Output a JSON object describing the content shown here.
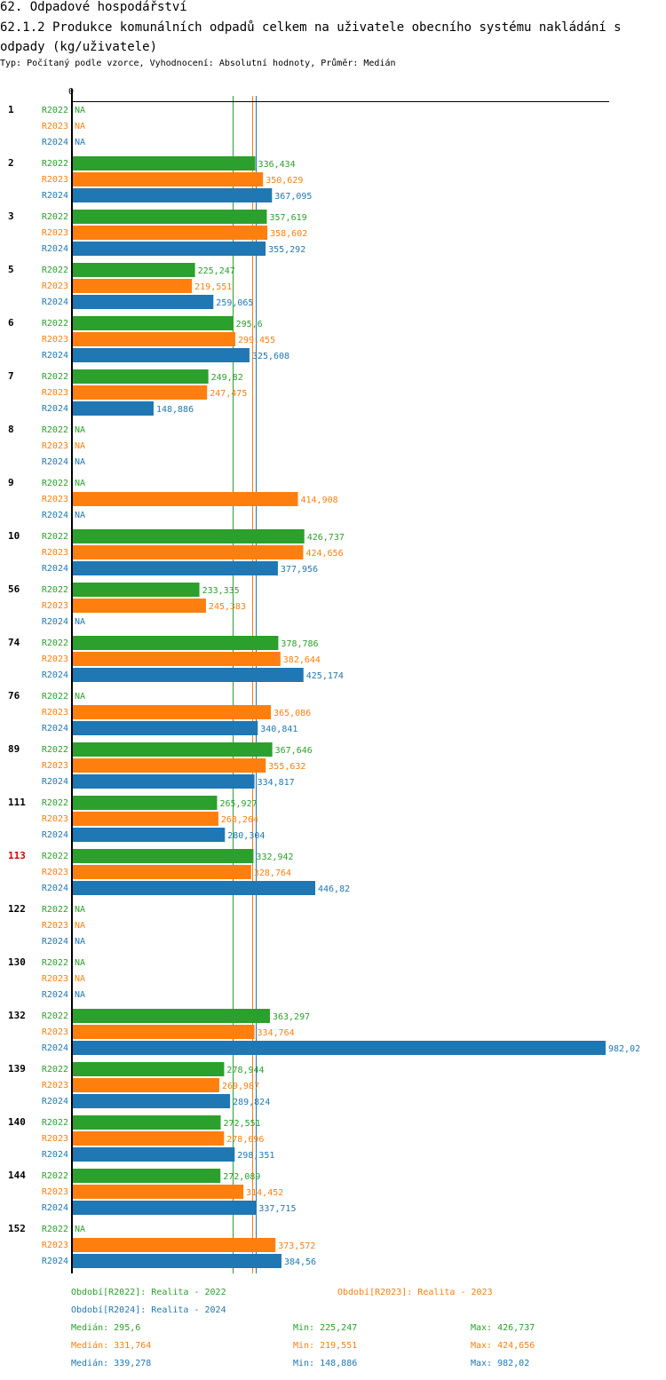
{
  "header": {
    "section": "62. Odpadové hospodářství",
    "title": "62.1.2 Produkce komunálních odpadů celkem na uživatele obecního systému nakládání s odpady (kg/uživatele)",
    "subtitle": "Typ: Počítaný podle vzorce, Vyhodnocení: Absolutní hodnoty, Průměr: Medián"
  },
  "chart_data": {
    "type": "bar",
    "orientation": "horizontal",
    "title": "62.1.2 Produkce komunálních odpadů celkem na uživatele obecního systému nakládání s odpady (kg/uživatele)",
    "xlabel": "",
    "ylabel": "",
    "x_tick_labels": [
      "0"
    ],
    "xlim": [
      0,
      982.02
    ],
    "grid": false,
    "missing_label": "NA",
    "highlight_category": "113",
    "categories": [
      "1",
      "2",
      "3",
      "5",
      "6",
      "7",
      "8",
      "9",
      "10",
      "56",
      "74",
      "76",
      "89",
      "111",
      "113",
      "122",
      "130",
      "132",
      "139",
      "140",
      "144",
      "152"
    ],
    "series": [
      {
        "name": "R2022",
        "color": "#2ca02c",
        "values": [
          null,
          336.434,
          357.619,
          225.247,
          295.6,
          249.82,
          null,
          null,
          426.737,
          233.335,
          378.786,
          null,
          367.646,
          265.927,
          332.942,
          null,
          null,
          363.297,
          278.944,
          272.551,
          272.089,
          null
        ],
        "labels": [
          "NA",
          "336,434",
          "357,619",
          "225,247",
          "295,6",
          "249,82",
          "NA",
          "NA",
          "426,737",
          "233,335",
          "378,786",
          "NA",
          "367,646",
          "265,927",
          "332,942",
          "NA",
          "NA",
          "363,297",
          "278,944",
          "272,551",
          "272,089",
          "NA"
        ]
      },
      {
        "name": "R2023",
        "color": "#ff7f0e",
        "values": [
          null,
          350.629,
          358.602,
          219.551,
          299.455,
          247.475,
          null,
          414.908,
          424.656,
          245.383,
          382.644,
          365.086,
          355.632,
          268.264,
          328.764,
          null,
          null,
          334.764,
          269.987,
          278.696,
          314.452,
          373.572
        ],
        "labels": [
          "NA",
          "350,629",
          "358,602",
          "219,551",
          "299,455",
          "247,475",
          "NA",
          "414,908",
          "424,656",
          "245,383",
          "382,644",
          "365,086",
          "355,632",
          "268,264",
          "328,764",
          "NA",
          "NA",
          "334,764",
          "269,987",
          "278,696",
          "314,452",
          "373,572"
        ]
      },
      {
        "name": "R2024",
        "color": "#1f77b4",
        "values": [
          null,
          367.095,
          355.292,
          259.065,
          325.608,
          148.886,
          null,
          null,
          377.956,
          null,
          425.174,
          340.841,
          334.817,
          280.304,
          446.82,
          null,
          null,
          982.02,
          289.824,
          298.351,
          337.715,
          384.56
        ],
        "labels": [
          "NA",
          "367,095",
          "355,292",
          "259,065",
          "325,608",
          "148,886",
          "NA",
          "NA",
          "377,956",
          "NA",
          "425,174",
          "340,841",
          "334,817",
          "280,304",
          "446,82",
          "NA",
          "NA",
          "982,02",
          "289,824",
          "298,351",
          "337,715",
          "384,56"
        ]
      }
    ],
    "medians": [
      295.6,
      331.764,
      339.278
    ],
    "legend": {
      "position": "bottom",
      "periods": [
        "Období[R2022]: Realita - 2022",
        "Období[R2023]: Realita - 2023",
        "Období[R2024]: Realita - 2024"
      ],
      "stats": [
        {
          "median": "Medián: 295,6",
          "min": "Min: 225,247",
          "max": "Max: 426,737"
        },
        {
          "median": "Medián: 331,764",
          "min": "Min: 219,551",
          "max": "Max: 424,656"
        },
        {
          "median": "Medián: 339,278",
          "min": "Min: 148,886",
          "max": "Max: 982,02"
        }
      ]
    }
  }
}
